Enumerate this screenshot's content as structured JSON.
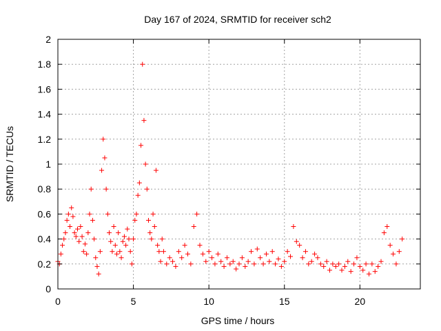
{
  "chart_data": {
    "type": "scatter",
    "title": "Day 167 of 2024, SRMTID for receiver sch2",
    "xlabel": "GPS time / hours",
    "ylabel": "SRMTID / TECUs",
    "xlim": [
      0,
      24
    ],
    "ylim": [
      0,
      2
    ],
    "xticks": [
      0,
      5,
      10,
      15,
      20
    ],
    "xtick_labels": [
      "0",
      "5",
      "10",
      "15",
      "20"
    ],
    "yticks": [
      0,
      0.2,
      0.4,
      0.6,
      0.8,
      1,
      1.2,
      1.4,
      1.6,
      1.8,
      2
    ],
    "ytick_labels": [
      "0",
      "0.2",
      "0.4",
      "0.6",
      "0.8",
      "1",
      "1.2",
      "1.4",
      "1.6",
      "1.8",
      "2"
    ],
    "grid": true,
    "marker": "plus",
    "color": "#ff0000",
    "series": [
      {
        "name": "sch2",
        "x": [
          0.0,
          0.1,
          0.2,
          0.3,
          0.4,
          0.5,
          0.6,
          0.7,
          0.8,
          0.9,
          1.0,
          1.1,
          1.2,
          1.3,
          1.4,
          1.5,
          1.6,
          1.7,
          1.8,
          1.9,
          2.0,
          2.1,
          2.2,
          2.3,
          2.4,
          2.5,
          2.6,
          2.7,
          2.8,
          2.9,
          3.0,
          3.1,
          3.2,
          3.3,
          3.4,
          3.5,
          3.6,
          3.7,
          3.8,
          3.9,
          4.0,
          4.1,
          4.2,
          4.3,
          4.4,
          4.5,
          4.6,
          4.7,
          4.8,
          4.9,
          5.0,
          5.1,
          5.2,
          5.3,
          5.4,
          5.5,
          5.6,
          5.7,
          5.8,
          5.9,
          6.0,
          6.1,
          6.2,
          6.3,
          6.4,
          6.5,
          6.6,
          6.7,
          6.8,
          6.9,
          7.0,
          7.2,
          7.4,
          7.6,
          7.8,
          8.0,
          8.2,
          8.4,
          8.6,
          8.8,
          9.0,
          9.2,
          9.4,
          9.6,
          9.8,
          10.0,
          10.2,
          10.4,
          10.6,
          10.8,
          11.0,
          11.2,
          11.4,
          11.6,
          11.8,
          12.0,
          12.2,
          12.4,
          12.6,
          12.8,
          13.0,
          13.2,
          13.4,
          13.6,
          13.8,
          14.0,
          14.2,
          14.4,
          14.6,
          14.8,
          15.0,
          15.2,
          15.4,
          15.6,
          15.8,
          16.0,
          16.2,
          16.4,
          16.6,
          16.8,
          17.0,
          17.2,
          17.4,
          17.6,
          17.8,
          18.0,
          18.2,
          18.4,
          18.6,
          18.8,
          19.0,
          19.2,
          19.4,
          19.6,
          19.8,
          20.0,
          20.2,
          20.4,
          20.6,
          20.8,
          21.0,
          21.2,
          21.4,
          21.6,
          21.8,
          22.0,
          22.2,
          22.4,
          22.6,
          22.8
        ],
        "y": [
          0.22,
          0.2,
          0.28,
          0.35,
          0.4,
          0.45,
          0.55,
          0.6,
          0.5,
          0.65,
          0.58,
          0.45,
          0.42,
          0.48,
          0.38,
          0.5,
          0.42,
          0.3,
          0.36,
          0.28,
          0.45,
          0.6,
          0.8,
          0.55,
          0.4,
          0.25,
          0.18,
          0.12,
          0.3,
          0.95,
          1.2,
          1.05,
          0.8,
          0.6,
          0.45,
          0.38,
          0.3,
          0.5,
          0.35,
          0.28,
          0.45,
          0.3,
          0.25,
          0.38,
          0.42,
          0.35,
          0.48,
          0.4,
          0.3,
          0.2,
          0.4,
          0.55,
          0.6,
          0.75,
          0.85,
          1.15,
          1.8,
          1.35,
          1.0,
          0.8,
          0.55,
          0.45,
          0.4,
          0.6,
          0.5,
          0.95,
          0.35,
          0.3,
          0.22,
          0.4,
          0.3,
          0.2,
          0.25,
          0.22,
          0.18,
          0.3,
          0.25,
          0.35,
          0.28,
          0.2,
          0.5,
          0.6,
          0.35,
          0.28,
          0.22,
          0.3,
          0.25,
          0.2,
          0.28,
          0.22,
          0.18,
          0.25,
          0.2,
          0.22,
          0.16,
          0.2,
          0.25,
          0.18,
          0.22,
          0.3,
          0.2,
          0.32,
          0.25,
          0.2,
          0.28,
          0.22,
          0.3,
          0.2,
          0.24,
          0.18,
          0.22,
          0.3,
          0.26,
          0.5,
          0.38,
          0.35,
          0.25,
          0.3,
          0.2,
          0.22,
          0.28,
          0.25,
          0.2,
          0.18,
          0.22,
          0.15,
          0.2,
          0.18,
          0.2,
          0.15,
          0.18,
          0.22,
          0.14,
          0.2,
          0.25,
          0.18,
          0.15,
          0.2,
          0.12,
          0.2,
          0.14,
          0.18,
          0.22,
          0.45,
          0.5,
          0.35,
          0.28,
          0.2,
          0.3,
          0.4
        ]
      }
    ]
  }
}
